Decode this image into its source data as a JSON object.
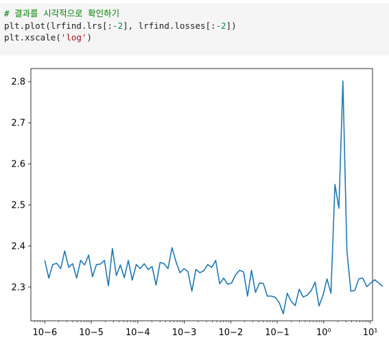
{
  "code_cell": {
    "line1": "# 결과를 시각적으로 확인하기",
    "line2_parts": [
      "plt.plot(lrfind.lrs[:",
      "-2",
      "], lrfind.losses[:",
      "-2",
      "])"
    ],
    "line3_parts": [
      "plt.xscale(",
      "'log'",
      ")"
    ]
  },
  "chart_data": {
    "type": "line",
    "xscale": "log",
    "xlim_exp": [
      -6.3,
      1.05
    ],
    "ylim": [
      2.218,
      2.832
    ],
    "xtick_exponents": [
      -6,
      -5,
      -4,
      -3,
      -2,
      -1,
      0,
      1
    ],
    "xtick_labels": [
      "10−6",
      "10−5",
      "10−4",
      "10−3",
      "10−2",
      "10−1",
      "10⁰",
      "10¹"
    ],
    "yticks": [
      2.3,
      2.4,
      2.5,
      2.6,
      2.7,
      2.8
    ],
    "ytick_labels": [
      "2.3",
      "2.4",
      "2.5",
      "2.6",
      "2.7",
      "2.8"
    ],
    "line_color": "#1f77b4",
    "grid": false,
    "series": [
      {
        "x_log10_start": -6.0,
        "x_log10_step": 0.0855,
        "y": [
          2.365,
          2.322,
          2.355,
          2.358,
          2.345,
          2.388,
          2.348,
          2.357,
          2.322,
          2.365,
          2.354,
          2.378,
          2.325,
          2.355,
          2.356,
          2.365,
          2.303,
          2.394,
          2.328,
          2.354,
          2.323,
          2.365,
          2.317,
          2.355,
          2.345,
          2.357,
          2.343,
          2.35,
          2.305,
          2.36,
          2.357,
          2.345,
          2.396,
          2.362,
          2.335,
          2.345,
          2.338,
          2.29,
          2.343,
          2.335,
          2.34,
          2.355,
          2.348,
          2.365,
          2.308,
          2.322,
          2.307,
          2.31,
          2.33,
          2.341,
          2.337,
          2.278,
          2.341,
          2.287,
          2.31,
          2.309,
          2.278,
          2.278,
          2.275,
          2.262,
          2.235,
          2.285,
          2.265,
          2.255,
          2.295,
          2.276,
          2.28,
          2.291,
          2.312,
          2.254,
          2.28,
          2.32,
          2.285,
          2.55,
          2.492,
          2.802,
          2.39,
          2.29,
          2.292,
          2.32,
          2.322,
          2.301,
          2.31,
          2.318,
          2.31,
          2.302
        ]
      }
    ]
  }
}
